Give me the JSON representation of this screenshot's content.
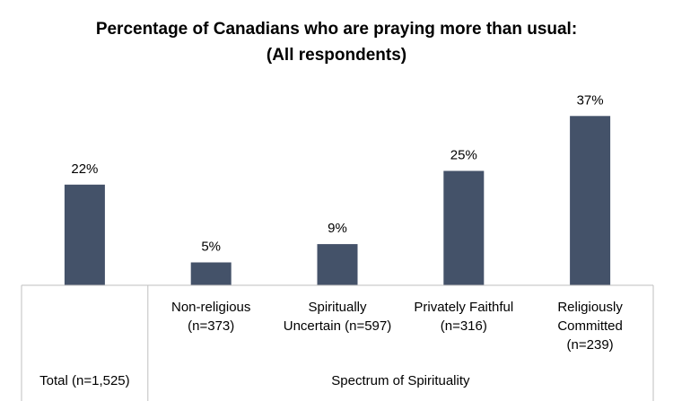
{
  "chart_data": {
    "type": "bar",
    "title": "Percentage of Canadians who are praying more than usual:",
    "subtitle": "(All respondents)",
    "categories": [
      [
        "Total (n=1,525)"
      ],
      [
        "Non-religious",
        "(n=373)"
      ],
      [
        "Spiritually",
        "Uncertain (n=597)"
      ],
      [
        "Privately Faithful",
        "(n=316)"
      ],
      [
        "Religiously",
        "Committed",
        "(n=239)"
      ]
    ],
    "values": [
      22,
      5,
      9,
      25,
      37
    ],
    "data_labels": [
      "22%",
      "5%",
      "9%",
      "25%",
      "37%"
    ],
    "group_label": "Spectrum of Spirituality",
    "ylim": [
      0,
      40
    ],
    "grid": false,
    "legend": "none",
    "colors": {
      "bar": "#445269",
      "axis": "#bfbfbf"
    }
  }
}
